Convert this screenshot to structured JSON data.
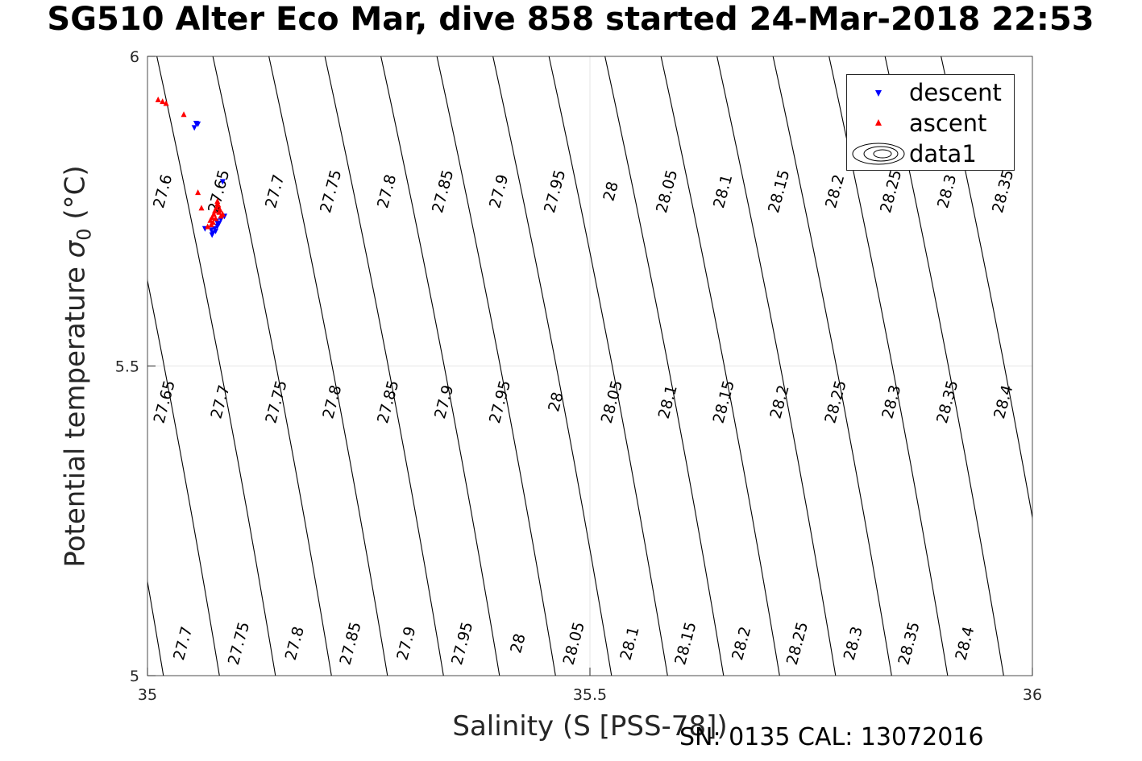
{
  "title": "SG510 Alter Eco Mar, dive 858 started 24-Mar-2018 22:53",
  "footnote": "SN: 0135  CAL: 13072016",
  "chart_data": {
    "type": "scatter",
    "xlabel": "Salinity (S [PSS-78])",
    "ylabel_prefix": "Potential temperature ",
    "ylabel_sigma": "σ",
    "ylabel_sub": "0",
    "ylabel_suffix": " (°C)",
    "xlim": [
      35,
      36
    ],
    "ylim": [
      5,
      6
    ],
    "xticks": [
      "35",
      "35.5",
      "36"
    ],
    "yticks": [
      "5",
      "5.5",
      "6"
    ],
    "grid": true,
    "legend_position": "top-right",
    "legend": [
      "descent",
      "ascent",
      "data1"
    ],
    "colors": {
      "descent": "#0000ff",
      "ascent": "#ff0000",
      "contours": "#000000",
      "grid": "#e6e6e6"
    },
    "contours": {
      "labels_top": [
        "27.6",
        "27.65",
        "27.7",
        "27.75",
        "27.8",
        "27.85",
        "27.9",
        "27.95",
        "28",
        "28.05",
        "28.1",
        "28.15",
        "28.2",
        "28.25",
        "28.3",
        "28.35"
      ],
      "labels_middle": [
        "27.65",
        "27.7",
        "27.75",
        "27.8",
        "27.85",
        "27.9",
        "27.95",
        "28",
        "28.05",
        "28.1",
        "28.15",
        "28.2",
        "28.25",
        "28.3",
        "28.35",
        "28.4"
      ],
      "labels_bottom": [
        "27.7",
        "27.75",
        "27.8",
        "27.85",
        "27.9",
        "27.95",
        "28",
        "28.05",
        "28.1",
        "28.15",
        "28.2",
        "28.25",
        "28.3",
        "28.35",
        "28.4"
      ]
    },
    "series": [
      {
        "name": "descent",
        "marker": "triangle-down",
        "points": [
          [
            35.053,
            5.885
          ],
          [
            35.055,
            5.892
          ],
          [
            35.057,
            5.891
          ],
          [
            35.085,
            5.798
          ],
          [
            35.065,
            5.722
          ],
          [
            35.072,
            5.72
          ],
          [
            35.074,
            5.715
          ],
          [
            35.077,
            5.718
          ],
          [
            35.079,
            5.726
          ],
          [
            35.081,
            5.731
          ],
          [
            35.083,
            5.737
          ],
          [
            35.087,
            5.742
          ],
          [
            35.08,
            5.729
          ],
          [
            35.076,
            5.722
          ],
          [
            35.073,
            5.712
          ],
          [
            35.078,
            5.734
          ]
        ]
      },
      {
        "name": "ascent",
        "marker": "triangle-up",
        "points": [
          [
            35.012,
            5.93
          ],
          [
            35.017,
            5.927
          ],
          [
            35.021,
            5.924
          ],
          [
            35.041,
            5.906
          ],
          [
            35.057,
            5.78
          ],
          [
            35.061,
            5.755
          ],
          [
            35.068,
            5.725
          ],
          [
            35.071,
            5.735
          ],
          [
            35.073,
            5.74
          ],
          [
            35.075,
            5.745
          ],
          [
            35.076,
            5.75
          ],
          [
            35.078,
            5.756
          ],
          [
            35.079,
            5.762
          ],
          [
            35.081,
            5.748
          ],
          [
            35.083,
            5.742
          ],
          [
            35.077,
            5.738
          ],
          [
            35.074,
            5.732
          ],
          [
            35.08,
            5.76
          ],
          [
            35.082,
            5.752
          ],
          [
            35.085,
            5.745
          ],
          [
            35.072,
            5.728
          ],
          [
            35.079,
            5.766
          ]
        ]
      }
    ]
  }
}
